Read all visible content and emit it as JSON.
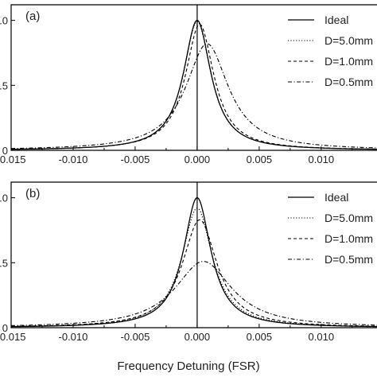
{
  "xlabel": "Frequency Detuning (FSR)",
  "chart_data": [
    {
      "type": "line",
      "panel_label": "(a)",
      "xlim": [
        -0.015,
        0.0145
      ],
      "ylim": [
        0,
        1.12
      ],
      "xticks": [
        -0.015,
        -0.01,
        -0.005,
        0.0,
        0.005,
        0.01
      ],
      "xtick_labels": [
        "-0.015",
        "-0.010",
        "-0.005",
        "0.000",
        "0.005",
        "0.010"
      ],
      "yticks": [
        0,
        0.5,
        1.0
      ],
      "ytick_labels": [
        "0",
        ".5",
        "1.0"
      ],
      "legend": "top-right",
      "series": [
        {
          "name": "Ideal",
          "dash": "solid",
          "center": 0.0,
          "peak": 1.0,
          "hwhm": 0.00135
        },
        {
          "name": "D=5.0mm",
          "dash": "dotted",
          "center": 0.0,
          "peak": 0.99,
          "hwhm": 0.00135
        },
        {
          "name": "D=1.0mm",
          "dash": "dashed",
          "center": 0.0002,
          "peak": 0.97,
          "hwhm": 0.0014
        },
        {
          "name": "D=0.5mm",
          "dash": "dashdot",
          "center": 0.0008,
          "peak": 0.82,
          "hwhm": 0.0021
        }
      ]
    },
    {
      "type": "line",
      "panel_label": "(b)",
      "xlim": [
        -0.015,
        0.0145
      ],
      "ylim": [
        0,
        1.12
      ],
      "xticks": [
        -0.015,
        -0.01,
        -0.005,
        0.0,
        0.005,
        0.01
      ],
      "xtick_labels": [
        "-0.015",
        "-0.010",
        "-0.005",
        "0.000",
        "0.005",
        "0.010"
      ],
      "yticks": [
        0,
        0.5,
        1.0
      ],
      "ytick_labels": [
        "0",
        ".5",
        "1.0"
      ],
      "legend": "top-right",
      "series": [
        {
          "name": "Ideal",
          "dash": "solid",
          "center": 0.0,
          "peak": 1.0,
          "hwhm": 0.00135
        },
        {
          "name": "D=5.0mm",
          "dash": "dotted",
          "center": 0.0,
          "peak": 0.92,
          "hwhm": 0.0015
        },
        {
          "name": "D=1.0mm",
          "dash": "dashed",
          "center": 0.0002,
          "peak": 0.83,
          "hwhm": 0.0017
        },
        {
          "name": "D=0.5mm",
          "dash": "dashdot",
          "center": 0.0005,
          "peak": 0.51,
          "hwhm": 0.0028
        }
      ]
    }
  ]
}
